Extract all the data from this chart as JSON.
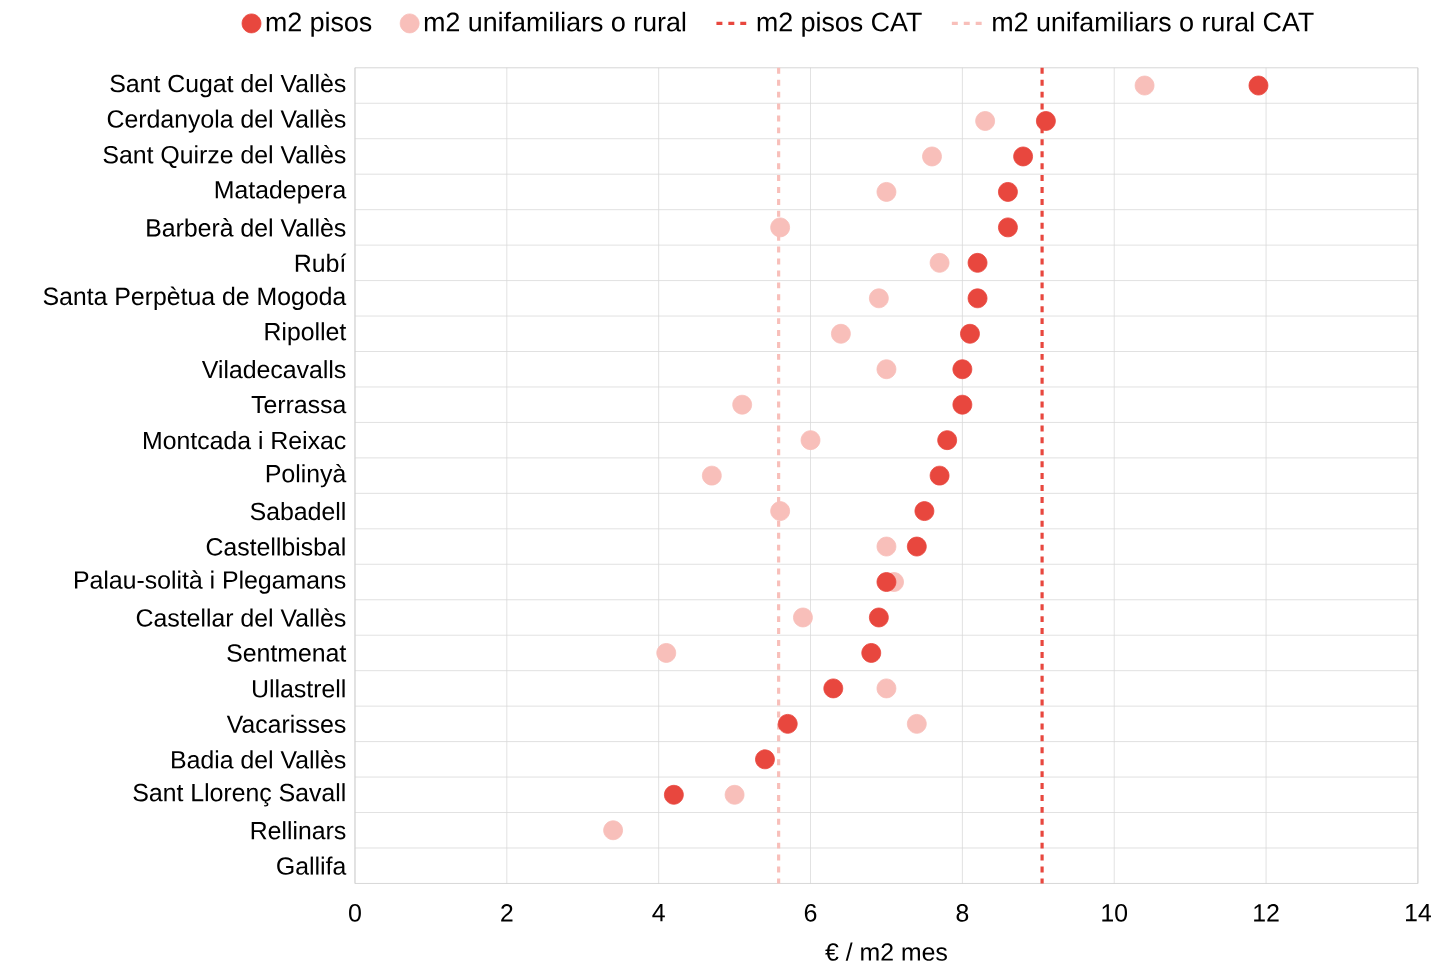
{
  "chart_data": {
    "type": "scatter",
    "orientation": "horizontal",
    "xlabel": "€ / m2 mes",
    "categories": [
      "Sant Cugat del Vallès",
      "Cerdanyola del Vallès",
      "Sant Quirze del Vallès",
      "Matadepera",
      "Barberà del Vallès",
      "Rubí",
      "Santa Perpètua de Mogoda",
      "Ripollet",
      "Viladecavalls",
      "Terrassa",
      "Montcada i Reixac",
      "Polinyà",
      "Sabadell",
      "Castellbisbal",
      "Palau-solità i Plegamans",
      "Castellar del Vallès",
      "Sentmenat",
      "Ullastrell",
      "Vacarisses",
      "Badia del Vallès",
      "Sant Llorenç Savall",
      "Rellinars",
      "Gallifa"
    ],
    "series": [
      {
        "name": "m2 pisos",
        "color": "#e8473e",
        "values": [
          11.9,
          9.1,
          8.8,
          8.6,
          8.6,
          8.2,
          8.2,
          8.1,
          8.0,
          8.0,
          7.8,
          7.7,
          7.5,
          7.4,
          7.0,
          6.9,
          6.8,
          6.3,
          5.7,
          5.4,
          4.2,
          null,
          null
        ]
      },
      {
        "name": "m2 unifamiliars o rural",
        "color": "#f8bfba",
        "values": [
          10.4,
          8.3,
          7.6,
          7.0,
          5.6,
          7.7,
          6.9,
          6.4,
          7.0,
          5.1,
          6.0,
          4.7,
          5.6,
          7.0,
          7.1,
          5.9,
          4.1,
          7.0,
          7.4,
          null,
          5.0,
          3.4,
          null
        ]
      }
    ],
    "ref_lines": [
      {
        "axis": "x",
        "value": 9.05,
        "label": "m2 pisos CAT",
        "color": "#e8473e",
        "line_style": "dashed"
      },
      {
        "axis": "x",
        "value": 5.58,
        "label": "m2 unifamiliars o rural CAT",
        "color": "#f8bfba",
        "line_style": "dashed"
      }
    ],
    "xlim": [
      0,
      14
    ],
    "xticks": [
      0,
      2,
      4,
      6,
      8,
      10,
      12,
      14
    ],
    "grid": true,
    "legend": "top",
    "marker": "circle"
  }
}
